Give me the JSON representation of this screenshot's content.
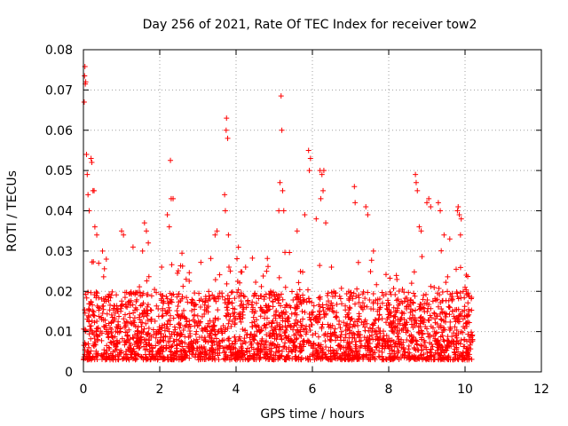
{
  "chart_data": {
    "type": "scatter",
    "title": "Day 256 of 2021, Rate Of TEC Index for receiver tow2",
    "xlabel": "GPS time / hours",
    "ylabel": "ROTI / TECUs",
    "xlim": [
      0,
      12
    ],
    "ylim": [
      0,
      0.08
    ],
    "x_ticks": [
      0,
      2,
      4,
      6,
      8,
      10,
      12
    ],
    "x_tick_labels": [
      "0",
      "2",
      "4",
      "6",
      "8",
      "10",
      "12"
    ],
    "y_ticks": [
      0,
      0.01,
      0.02,
      0.03,
      0.04,
      0.05,
      0.06,
      0.07,
      0.08
    ],
    "y_tick_labels": [
      "0",
      "0.01",
      "0.02",
      "0.03",
      "0.04",
      "0.05",
      "0.06",
      "0.07",
      "0.08"
    ],
    "grid": true,
    "marker": "+",
    "color": "#ff0000",
    "series": [
      {
        "name": "ROTI",
        "data_coverage_hours": [
          0,
          10.2
        ],
        "typical_range": [
          0.003,
          0.02
        ],
        "points": [
          [
            0.02,
            0.067
          ],
          [
            0.03,
            0.0735
          ],
          [
            0.04,
            0.0758
          ],
          [
            0.05,
            0.0715
          ],
          [
            0.06,
            0.072
          ],
          [
            0.08,
            0.054
          ],
          [
            0.1,
            0.049
          ],
          [
            0.12,
            0.044
          ],
          [
            0.2,
            0.053
          ],
          [
            0.22,
            0.052
          ],
          [
            0.25,
            0.045
          ],
          [
            0.28,
            0.045
          ],
          [
            0.15,
            0.04
          ],
          [
            0.3,
            0.036
          ],
          [
            0.35,
            0.034
          ],
          [
            1.0,
            0.035
          ],
          [
            1.6,
            0.037
          ],
          [
            1.65,
            0.035
          ],
          [
            1.7,
            0.032
          ],
          [
            1.55,
            0.03
          ],
          [
            2.2,
            0.039
          ],
          [
            2.25,
            0.036
          ],
          [
            2.28,
            0.0525
          ],
          [
            2.3,
            0.043
          ],
          [
            2.35,
            0.043
          ],
          [
            3.45,
            0.034
          ],
          [
            3.5,
            0.035
          ],
          [
            3.7,
            0.044
          ],
          [
            3.72,
            0.04
          ],
          [
            3.75,
            0.063
          ],
          [
            3.74,
            0.06
          ],
          [
            3.78,
            0.058
          ],
          [
            3.8,
            0.034
          ],
          [
            4.25,
            0.026
          ],
          [
            4.8,
            0.025
          ],
          [
            5.15,
            0.047
          ],
          [
            5.18,
            0.0685
          ],
          [
            5.2,
            0.06
          ],
          [
            5.22,
            0.045
          ],
          [
            5.25,
            0.04
          ],
          [
            5.12,
            0.04
          ],
          [
            5.6,
            0.035
          ],
          [
            5.8,
            0.039
          ],
          [
            5.9,
            0.055
          ],
          [
            5.95,
            0.053
          ],
          [
            5.92,
            0.05
          ],
          [
            6.2,
            0.05
          ],
          [
            6.25,
            0.049
          ],
          [
            6.3,
            0.05
          ],
          [
            6.28,
            0.045
          ],
          [
            6.22,
            0.043
          ],
          [
            6.35,
            0.037
          ],
          [
            6.1,
            0.038
          ],
          [
            6.5,
            0.026
          ],
          [
            7.1,
            0.046
          ],
          [
            7.12,
            0.042
          ],
          [
            7.4,
            0.041
          ],
          [
            7.45,
            0.039
          ],
          [
            7.6,
            0.03
          ],
          [
            8.7,
            0.049
          ],
          [
            8.75,
            0.045
          ],
          [
            8.72,
            0.047
          ],
          [
            8.8,
            0.036
          ],
          [
            8.85,
            0.035
          ],
          [
            9.0,
            0.042
          ],
          [
            9.05,
            0.043
          ],
          [
            9.1,
            0.041
          ],
          [
            9.3,
            0.042
          ],
          [
            9.35,
            0.04
          ],
          [
            9.45,
            0.034
          ],
          [
            9.6,
            0.033
          ],
          [
            9.8,
            0.04
          ],
          [
            9.82,
            0.041
          ],
          [
            9.85,
            0.039
          ],
          [
            9.9,
            0.038
          ],
          [
            9.88,
            0.034
          ],
          [
            10.0,
            0.021
          ],
          [
            10.1,
            0.015
          ],
          [
            8.6,
            0.022
          ],
          [
            0.5,
            0.03
          ],
          [
            0.6,
            0.028
          ],
          [
            0.4,
            0.027
          ],
          [
            2.05,
            0.026
          ],
          [
            1.05,
            0.034
          ],
          [
            1.3,
            0.031
          ]
        ]
      }
    ]
  }
}
